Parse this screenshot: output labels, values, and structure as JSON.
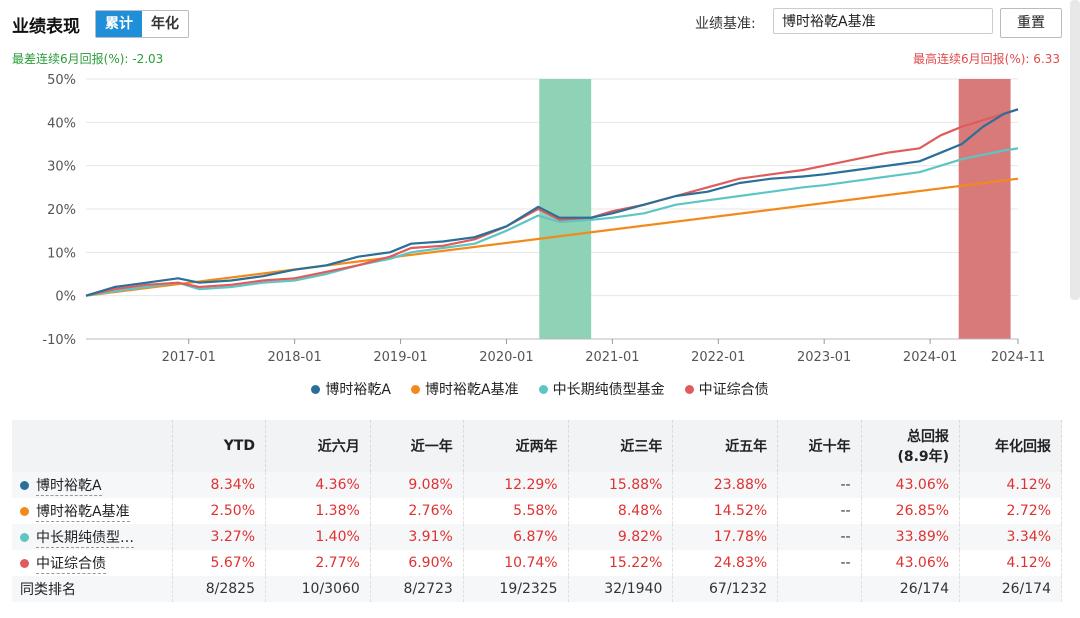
{
  "header": {
    "title": "业绩表现",
    "tabs": [
      {
        "label": "累计",
        "active": true
      },
      {
        "label": "年化",
        "active": false
      }
    ],
    "benchmark_label": "业绩基准:",
    "benchmark_value": "博时裕乾A基准",
    "reset_label": "重置"
  },
  "worst_text": "最差连续6月回报(%): -2.03",
  "best_text": "最高连续6月回报(%): 6.33",
  "colors": {
    "fund": "#2a6f97",
    "bench": "#f28a1b",
    "category": "#5dc5c4",
    "index": "#e05c5c",
    "green_band": "#8fd3b6",
    "red_band": "#d87a7a"
  },
  "chart_data": {
    "type": "line",
    "ylim": [
      -10,
      50
    ],
    "yticks": [
      "50%",
      "40%",
      "30%",
      "20%",
      "10%",
      "0%",
      "-10%"
    ],
    "xticks": [
      "2017-01",
      "2018-01",
      "2019-01",
      "2020-01",
      "2021-01",
      "2022-01",
      "2023-01",
      "2024-01",
      "2024-11"
    ],
    "xtick_years": [
      2017.0,
      2018.0,
      2019.0,
      2020.0,
      2021.0,
      2022.0,
      2023.0,
      2024.0,
      2024.83
    ],
    "x_range": [
      2016.03,
      2024.83
    ],
    "highlight_worst": {
      "from": 2020.31,
      "to": 2020.8
    },
    "highlight_best": {
      "from": 2024.27,
      "to": 2024.76
    },
    "series": [
      {
        "name": "博时裕乾A",
        "key": "fund",
        "points": [
          [
            2016.03,
            0
          ],
          [
            2016.3,
            2
          ],
          [
            2016.6,
            3
          ],
          [
            2016.9,
            4
          ],
          [
            2017.1,
            3
          ],
          [
            2017.4,
            3.5
          ],
          [
            2017.7,
            4.5
          ],
          [
            2018.0,
            6
          ],
          [
            2018.3,
            7
          ],
          [
            2018.6,
            9
          ],
          [
            2018.9,
            10
          ],
          [
            2019.1,
            12
          ],
          [
            2019.4,
            12.5
          ],
          [
            2019.7,
            13.5
          ],
          [
            2020.0,
            16
          ],
          [
            2020.3,
            20.5
          ],
          [
            2020.5,
            18
          ],
          [
            2020.8,
            18
          ],
          [
            2021.0,
            19
          ],
          [
            2021.3,
            21
          ],
          [
            2021.6,
            23
          ],
          [
            2021.9,
            24
          ],
          [
            2022.2,
            26
          ],
          [
            2022.5,
            27
          ],
          [
            2022.8,
            27.5
          ],
          [
            2023.0,
            28
          ],
          [
            2023.3,
            29
          ],
          [
            2023.6,
            30
          ],
          [
            2023.9,
            31
          ],
          [
            2024.1,
            33
          ],
          [
            2024.3,
            35
          ],
          [
            2024.5,
            39
          ],
          [
            2024.7,
            42
          ],
          [
            2024.83,
            43
          ]
        ]
      },
      {
        "name": "博时裕乾A基准",
        "key": "bench",
        "points": [
          [
            2016.03,
            0
          ],
          [
            2024.83,
            27
          ]
        ]
      },
      {
        "name": "中长期纯债型基金",
        "key": "category",
        "points": [
          [
            2016.03,
            0
          ],
          [
            2016.3,
            1
          ],
          [
            2016.6,
            2
          ],
          [
            2016.9,
            3
          ],
          [
            2017.1,
            1.5
          ],
          [
            2017.4,
            2
          ],
          [
            2017.7,
            3
          ],
          [
            2018.0,
            3.5
          ],
          [
            2018.3,
            5
          ],
          [
            2018.6,
            7
          ],
          [
            2018.9,
            8.5
          ],
          [
            2019.1,
            10
          ],
          [
            2019.4,
            11
          ],
          [
            2019.7,
            12
          ],
          [
            2020.0,
            15
          ],
          [
            2020.3,
            18.5
          ],
          [
            2020.5,
            17
          ],
          [
            2020.8,
            17.5
          ],
          [
            2021.0,
            18
          ],
          [
            2021.3,
            19
          ],
          [
            2021.6,
            21
          ],
          [
            2021.9,
            22
          ],
          [
            2022.2,
            23
          ],
          [
            2022.5,
            24
          ],
          [
            2022.8,
            25
          ],
          [
            2023.0,
            25.5
          ],
          [
            2023.3,
            26.5
          ],
          [
            2023.6,
            27.5
          ],
          [
            2023.9,
            28.5
          ],
          [
            2024.1,
            30
          ],
          [
            2024.3,
            31.5
          ],
          [
            2024.5,
            32.5
          ],
          [
            2024.7,
            33.5
          ],
          [
            2024.83,
            34
          ]
        ]
      },
      {
        "name": "中证综合债",
        "key": "index",
        "points": [
          [
            2016.03,
            0
          ],
          [
            2016.3,
            1.5
          ],
          [
            2016.6,
            2.5
          ],
          [
            2016.9,
            3
          ],
          [
            2017.1,
            2
          ],
          [
            2017.4,
            2.5
          ],
          [
            2017.7,
            3.5
          ],
          [
            2018.0,
            4
          ],
          [
            2018.3,
            5.5
          ],
          [
            2018.6,
            7
          ],
          [
            2018.9,
            9
          ],
          [
            2019.1,
            11
          ],
          [
            2019.4,
            11.5
          ],
          [
            2019.7,
            13
          ],
          [
            2020.0,
            16
          ],
          [
            2020.3,
            20
          ],
          [
            2020.5,
            17.5
          ],
          [
            2020.8,
            18
          ],
          [
            2021.0,
            19.5
          ],
          [
            2021.3,
            21
          ],
          [
            2021.6,
            23
          ],
          [
            2021.9,
            25
          ],
          [
            2022.2,
            27
          ],
          [
            2022.5,
            28
          ],
          [
            2022.8,
            29
          ],
          [
            2023.0,
            30
          ],
          [
            2023.3,
            31.5
          ],
          [
            2023.6,
            33
          ],
          [
            2023.9,
            34
          ],
          [
            2024.1,
            37
          ],
          [
            2024.3,
            39
          ],
          [
            2024.5,
            40.5
          ],
          [
            2024.7,
            42
          ],
          [
            2024.83,
            43
          ]
        ]
      }
    ]
  },
  "legend": [
    "博时裕乾A",
    "博时裕乾A基准",
    "中长期纯债型基金",
    "中证综合债"
  ],
  "table": {
    "headers": [
      "",
      "YTD",
      "近六月",
      "近一年",
      "近两年",
      "近三年",
      "近五年",
      "近十年",
      "总回报\n(8.9年)",
      "年化回报"
    ],
    "rows": [
      {
        "name": "博时裕乾A",
        "key": "fund",
        "values": [
          "8.34%",
          "4.36%",
          "9.08%",
          "12.29%",
          "15.88%",
          "23.88%",
          "--",
          "43.06%",
          "4.12%"
        ]
      },
      {
        "name": "博时裕乾A基准",
        "key": "bench",
        "values": [
          "2.50%",
          "1.38%",
          "2.76%",
          "5.58%",
          "8.48%",
          "14.52%",
          "--",
          "26.85%",
          "2.72%"
        ]
      },
      {
        "name": "中长期纯债型…",
        "key": "category",
        "values": [
          "3.27%",
          "1.40%",
          "3.91%",
          "6.87%",
          "9.82%",
          "17.78%",
          "--",
          "33.89%",
          "3.34%"
        ]
      },
      {
        "name": "中证综合债",
        "key": "index",
        "values": [
          "5.67%",
          "2.77%",
          "6.90%",
          "10.74%",
          "15.22%",
          "24.83%",
          "--",
          "43.06%",
          "4.12%"
        ]
      },
      {
        "name": "同类排名",
        "key": "rank",
        "values": [
          "8/2825",
          "10/3060",
          "8/2723",
          "19/2325",
          "32/1940",
          "67/1232",
          "",
          "26/174",
          "26/174"
        ]
      }
    ]
  }
}
